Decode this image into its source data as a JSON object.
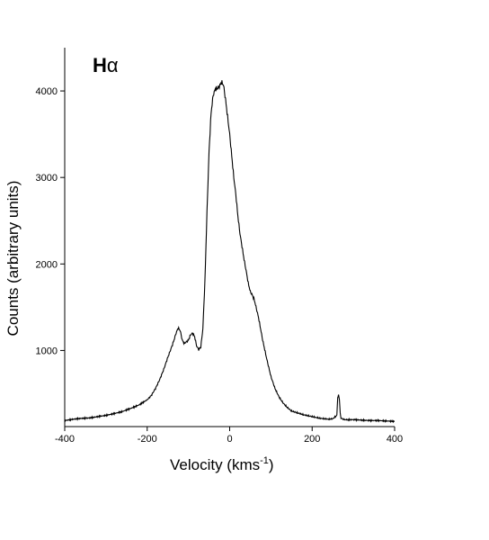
{
  "chart_data": {
    "type": "line",
    "title": "",
    "panel_label": "H",
    "panel_label_greek": "α",
    "xlabel": "Velocity (kms",
    "xlabel_sup": "-1",
    "xlabel_close": ")",
    "ylabel": "Counts (arbitrary units)",
    "xlim": [
      -400,
      400
    ],
    "ylim": [
      120,
      4500
    ],
    "xticks": [
      -400,
      -200,
      0,
      200,
      400
    ],
    "xtick_labels": [
      "-400",
      "-200",
      "0",
      "200",
      "400"
    ],
    "yticks": [
      1000,
      2000,
      3000,
      4000
    ],
    "ytick_labels": [
      "1000",
      "2000",
      "3000",
      "4000"
    ],
    "grid": false,
    "series": [
      {
        "name": "",
        "x": [
          -400,
          -380,
          -360,
          -340,
          -320,
          -300,
          -280,
          -260,
          -240,
          -220,
          -200,
          -190,
          -180,
          -170,
          -160,
          -150,
          -140,
          -135,
          -130,
          -125,
          -120,
          -115,
          -110,
          -100,
          -95,
          -90,
          -85,
          -80,
          -75,
          -70,
          -65,
          -60,
          -55,
          -50,
          -45,
          -40,
          -35,
          -30,
          -25,
          -20,
          -15,
          -10,
          -5,
          0,
          5,
          10,
          15,
          20,
          25,
          30,
          35,
          40,
          45,
          50,
          55,
          60,
          70,
          80,
          90,
          100,
          110,
          120,
          130,
          140,
          150,
          160,
          170,
          180,
          190,
          200,
          210,
          220,
          230,
          240,
          250,
          260,
          262,
          264,
          266,
          268,
          270,
          275,
          280,
          300,
          320,
          340,
          360,
          380,
          400
        ],
        "y": [
          190,
          205,
          215,
          220,
          235,
          250,
          270,
          295,
          330,
          370,
          430,
          480,
          560,
          660,
          780,
          920,
          1050,
          1120,
          1200,
          1260,
          1230,
          1120,
          1080,
          1120,
          1180,
          1200,
          1160,
          1050,
          1010,
          1040,
          1250,
          1800,
          2600,
          3300,
          3750,
          3950,
          4020,
          4030,
          4050,
          4100,
          4070,
          3900,
          3700,
          3500,
          3250,
          3000,
          2800,
          2550,
          2350,
          2200,
          2050,
          1920,
          1780,
          1680,
          1640,
          1580,
          1380,
          1120,
          900,
          700,
          560,
          460,
          390,
          340,
          300,
          285,
          270,
          255,
          245,
          235,
          225,
          215,
          210,
          205,
          210,
          250,
          450,
          500,
          430,
          280,
          220,
          205,
          200,
          200,
          195,
          190,
          190,
          185,
          180
        ]
      }
    ]
  }
}
